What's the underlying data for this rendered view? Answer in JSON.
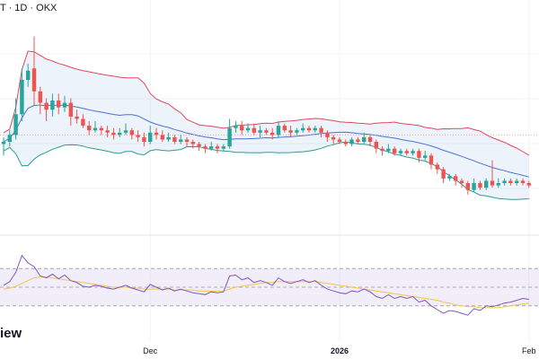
{
  "header": {
    "label": "T · 1D · OKX"
  },
  "watermark": {
    "text": "iew"
  },
  "chart_data": {
    "type": "candlestick",
    "price_panel": {
      "reference_line_index": 44,
      "candles": [
        [
          45,
          46,
          48,
          40
        ],
        [
          46,
          49,
          51,
          44
        ],
        [
          49,
          58,
          65,
          47
        ],
        [
          58,
          73,
          78,
          55
        ],
        [
          73,
          77,
          80,
          70
        ],
        [
          78,
          68,
          92,
          62
        ],
        [
          68,
          63,
          70,
          58
        ],
        [
          63,
          60,
          65,
          55
        ],
        [
          60,
          64,
          67,
          57
        ],
        [
          64,
          61,
          67,
          58
        ],
        [
          61,
          63,
          66,
          59
        ],
        [
          63,
          57,
          65,
          53
        ],
        [
          57,
          56,
          60,
          54
        ],
        [
          56,
          53,
          58,
          52
        ],
        [
          53,
          51,
          55,
          49
        ],
        [
          51,
          52,
          55,
          50
        ],
        [
          52,
          51,
          53,
          49
        ],
        [
          51,
          50,
          53,
          48
        ],
        [
          50,
          49,
          52,
          47
        ],
        [
          49,
          50,
          52,
          48
        ],
        [
          50,
          51,
          54,
          49
        ],
        [
          51,
          49,
          52,
          47
        ],
        [
          49,
          48,
          51,
          46
        ],
        [
          48,
          46,
          50,
          44
        ],
        [
          46,
          50,
          53,
          45
        ],
        [
          50,
          49,
          52,
          47
        ],
        [
          49,
          47,
          51,
          46
        ],
        [
          47,
          48,
          50,
          46
        ],
        [
          48,
          46,
          49,
          45
        ],
        [
          46,
          47,
          49,
          45
        ],
        [
          47,
          46,
          48,
          44
        ],
        [
          46,
          45,
          47,
          43
        ],
        [
          45,
          44,
          46,
          42
        ],
        [
          44,
          43,
          45,
          41
        ],
        [
          43,
          44,
          46,
          42
        ],
        [
          44,
          43,
          45,
          41
        ],
        [
          43,
          44,
          45,
          42
        ],
        [
          44,
          52,
          56,
          43
        ],
        [
          52,
          53,
          55,
          50
        ],
        [
          53,
          51,
          55,
          49
        ],
        [
          51,
          52,
          54,
          50
        ],
        [
          52,
          50,
          54,
          49
        ],
        [
          50,
          51,
          53,
          48
        ],
        [
          51,
          50,
          52,
          49
        ],
        [
          50,
          49,
          52,
          47
        ],
        [
          49,
          53,
          55,
          48
        ],
        [
          53,
          51,
          54,
          50
        ],
        [
          51,
          50,
          53,
          48
        ],
        [
          50,
          51,
          52,
          49
        ],
        [
          51,
          52,
          54,
          50
        ],
        [
          52,
          51,
          53,
          50
        ],
        [
          51,
          52,
          53,
          50
        ],
        [
          52,
          50,
          53,
          48
        ],
        [
          50,
          48,
          51,
          46
        ],
        [
          48,
          47,
          49,
          45
        ],
        [
          47,
          46,
          48,
          45
        ],
        [
          46,
          45,
          47,
          44
        ],
        [
          45,
          47,
          48,
          44
        ],
        [
          47,
          46,
          48,
          45
        ],
        [
          46,
          48,
          50,
          45
        ],
        [
          48,
          46,
          49,
          44
        ],
        [
          46,
          43,
          47,
          41
        ],
        [
          43,
          42,
          44,
          40
        ],
        [
          42,
          43,
          45,
          41
        ],
        [
          43,
          41,
          44,
          40
        ],
        [
          41,
          42,
          43,
          40
        ],
        [
          42,
          41,
          43,
          40
        ],
        [
          41,
          42,
          43,
          40
        ],
        [
          42,
          39,
          43,
          37
        ],
        [
          39,
          40,
          42,
          38
        ],
        [
          40,
          36,
          41,
          34
        ],
        [
          36,
          34,
          37,
          32
        ],
        [
          34,
          30,
          35,
          28
        ],
        [
          30,
          31,
          32,
          29
        ],
        [
          31,
          29,
          32,
          27
        ],
        [
          29,
          28,
          30,
          26
        ],
        [
          28,
          25,
          29,
          23
        ],
        [
          25,
          28,
          30,
          24
        ],
        [
          28,
          26,
          29,
          25
        ],
        [
          26,
          29,
          30,
          25
        ],
        [
          29,
          27,
          38,
          26
        ],
        [
          27,
          28,
          30,
          26
        ],
        [
          28,
          29,
          30,
          27
        ],
        [
          29,
          28,
          30,
          27
        ],
        [
          28,
          29,
          30,
          27
        ],
        [
          29,
          28,
          30,
          27
        ],
        [
          28,
          27,
          29,
          26
        ]
      ]
    },
    "x_axis": {
      "ticks": [
        {
          "label": "Dec",
          "index": 24,
          "bold": false
        },
        {
          "label": "2026",
          "index": 55,
          "bold": true
        },
        {
          "label": "Feb",
          "index": 86,
          "bold": false
        }
      ]
    },
    "rsi_panel": {
      "levels": [
        70,
        50,
        30
      ],
      "values": [
        52,
        56,
        66,
        84,
        76,
        72,
        62,
        60,
        64,
        59,
        63,
        57,
        55,
        51,
        50,
        52,
        51,
        49,
        48,
        50,
        52,
        49,
        47,
        45,
        53,
        50,
        47,
        49,
        46,
        48,
        46,
        44,
        43,
        42,
        45,
        44,
        45,
        62,
        63,
        58,
        60,
        55,
        57,
        55,
        52,
        60,
        56,
        54,
        56,
        58,
        55,
        57,
        52,
        48,
        46,
        44,
        43,
        46,
        45,
        48,
        45,
        40,
        38,
        42,
        38,
        40,
        38,
        40,
        34,
        36,
        30,
        26,
        22,
        25,
        24,
        22,
        20,
        27,
        25,
        30,
        29,
        31,
        33,
        34,
        36,
        38,
        37
      ],
      "ma_values": [
        48,
        49,
        51,
        54,
        57,
        60,
        61,
        61,
        60,
        59,
        58,
        57,
        56,
        55,
        54,
        53,
        52,
        51,
        50,
        50,
        50,
        49,
        49,
        48,
        48,
        48,
        48,
        48,
        47,
        47,
        47,
        47,
        46,
        46,
        46,
        46,
        46,
        48,
        50,
        51,
        52,
        53,
        54,
        55,
        55,
        56,
        56,
        56,
        56,
        56,
        56,
        56,
        55,
        54,
        53,
        52,
        51,
        50,
        49,
        48,
        47,
        46,
        45,
        44,
        43,
        42,
        41,
        40,
        39,
        38,
        37,
        36,
        34,
        33,
        31,
        30,
        29,
        29,
        28,
        28,
        28,
        28,
        29,
        30,
        31,
        32,
        33
      ]
    },
    "colors": {
      "up": "#26a69a",
      "down": "#ef5350",
      "basis": "#4c72d8",
      "upper": "#e0485a",
      "lower": "#2e9e8a",
      "band_fill": "rgba(120,170,230,0.14)",
      "rsi_line": "#7e57c2",
      "rsi_ma": "#f4c542",
      "rsi_bg": "rgba(126,87,194,0.10)",
      "ref_line": "#f2a7a7",
      "grid": "#f0f3fa"
    }
  }
}
